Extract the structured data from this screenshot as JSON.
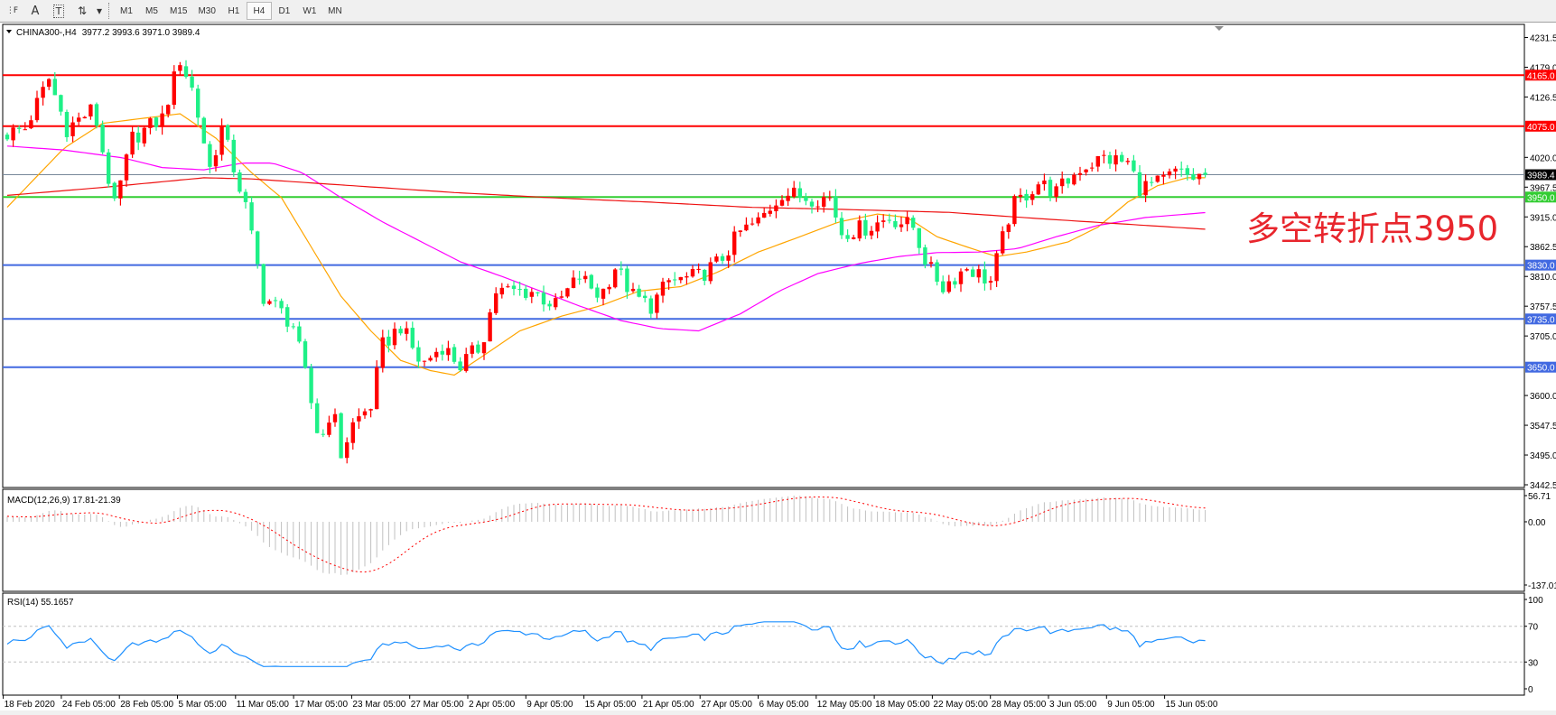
{
  "toolbar": {
    "tools": [
      {
        "name": "period-separators-icon",
        "glyph": "⋮F"
      },
      {
        "name": "text-tool-icon",
        "glyph": "A"
      },
      {
        "name": "text-label-icon",
        "glyph": "T"
      },
      {
        "name": "arrows-tool-icon",
        "glyph": "⇅"
      },
      {
        "name": "dropdown-icon",
        "glyph": "▾"
      }
    ],
    "timeframes": [
      "M1",
      "M5",
      "M15",
      "M30",
      "H1",
      "H4",
      "D1",
      "W1",
      "MN"
    ],
    "selected": "H4"
  },
  "chart": {
    "symbol": "CHINA300-,H4",
    "ohlc": "3977.2 3993.6 3971.0 3989.4",
    "price_ticks": [
      "4231.5",
      "4179.0",
      "4126.5",
      "4020.0",
      "3967.5",
      "3915.0",
      "3862.5",
      "3810.0",
      "3757.5",
      "3705.0",
      "3600.0",
      "3547.5",
      "3495.0",
      "3442.5"
    ],
    "levels": [
      {
        "price": 4165.0,
        "label": "4165.0",
        "color": "#ff0000"
      },
      {
        "price": 4075.0,
        "label": "4075.0",
        "color": "#ff0000"
      },
      {
        "price": 3950.0,
        "label": "3950.0",
        "color": "#32cd32"
      },
      {
        "price": 3830.0,
        "label": "3830.0",
        "color": "#4169e1"
      },
      {
        "price": 3735.0,
        "label": "3735.0",
        "color": "#4169e1"
      },
      {
        "price": 3650.0,
        "label": "3650.0",
        "color": "#4169e1"
      }
    ],
    "current_price": {
      "price": 3989.4,
      "label": "3989.4",
      "color": "#778899"
    },
    "annotation": "多空转折点3950",
    "annotation_color": "#e8262d",
    "date_labels": [
      "18 Feb 2020",
      "24 Feb 05:00",
      "28 Feb 05:00",
      "5 Mar 05:00",
      "11 Mar 05:00",
      "17 Mar 05:00",
      "23 Mar 05:00",
      "27 Mar 05:00",
      "2 Apr 05:00",
      "9 Apr 05:00",
      "15 Apr 05:00",
      "21 Apr 05:00",
      "27 Apr 05:00",
      "6 May 05:00",
      "12 May 05:00",
      "18 May 05:00",
      "22 May 05:00",
      "28 May 05:00",
      "3 Jun 05:00",
      "9 Jun 05:00",
      "15 Jun 05:00"
    ]
  },
  "chart_data": {
    "type": "candlestick",
    "price_range": [
      3442.5,
      4231.5
    ],
    "bar_count": 202,
    "up_color": "#ff0000",
    "down_color": "#1ef087",
    "price_path": [
      [
        0,
        4062
      ],
      [
        3,
        4071
      ],
      [
        7,
        4158
      ],
      [
        10,
        4071
      ],
      [
        14.5,
        4106
      ],
      [
        18,
        3932
      ],
      [
        21,
        4054
      ],
      [
        26,
        4089
      ],
      [
        29,
        4193
      ],
      [
        31,
        4141
      ],
      [
        34,
        4001
      ],
      [
        36,
        4071
      ],
      [
        39,
        3967
      ],
      [
        40,
        3932
      ],
      [
        43,
        3775
      ],
      [
        45,
        3758
      ],
      [
        48,
        3723
      ],
      [
        50,
        3636
      ],
      [
        52.5,
        3514
      ],
      [
        54.5,
        3583
      ],
      [
        56,
        3496
      ],
      [
        58,
        3549
      ],
      [
        61,
        3583
      ],
      [
        63,
        3688
      ],
      [
        66,
        3723
      ],
      [
        69.5,
        3653
      ],
      [
        73,
        3688
      ],
      [
        76,
        3653
      ],
      [
        79.5,
        3688
      ],
      [
        82,
        3784
      ],
      [
        88,
        3784
      ],
      [
        92,
        3758
      ],
      [
        96,
        3810
      ],
      [
        99.5,
        3775
      ],
      [
        102,
        3827
      ],
      [
        105,
        3775
      ],
      [
        108,
        3758
      ],
      [
        111,
        3801
      ],
      [
        116,
        3810
      ],
      [
        119.5,
        3836
      ],
      [
        123,
        3888
      ],
      [
        126,
        3906
      ],
      [
        130,
        3958
      ],
      [
        134.5,
        3949
      ],
      [
        138,
        3949
      ],
      [
        140,
        3888
      ],
      [
        144.5,
        3897
      ],
      [
        148,
        3914
      ],
      [
        152,
        3897
      ],
      [
        154.5,
        3827
      ],
      [
        157,
        3792
      ],
      [
        161,
        3827
      ],
      [
        165,
        3801
      ],
      [
        168.5,
        3932
      ],
      [
        173,
        3975
      ],
      [
        176,
        3958
      ],
      [
        180,
        4001
      ],
      [
        184,
        4019
      ],
      [
        188,
        4010
      ],
      [
        190,
        3967
      ],
      [
        193.5,
        3975
      ],
      [
        196,
        3993
      ],
      [
        199,
        3984
      ],
      [
        201,
        3989.4
      ]
    ],
    "ma_fast": {
      "color": "#ffa500",
      "points": [
        [
          0,
          3932
        ],
        [
          9.5,
          4036
        ],
        [
          16,
          4080
        ],
        [
          29,
          4097
        ],
        [
          35,
          4054
        ],
        [
          41,
          3993
        ],
        [
          46,
          3949
        ],
        [
          51,
          3862
        ],
        [
          56,
          3775
        ],
        [
          61,
          3714
        ],
        [
          66,
          3662
        ],
        [
          71,
          3644
        ],
        [
          75,
          3636
        ],
        [
          80,
          3671
        ],
        [
          86,
          3714
        ],
        [
          93,
          3740
        ],
        [
          99.5,
          3758
        ],
        [
          106,
          3784
        ],
        [
          113,
          3792
        ],
        [
          119.5,
          3819
        ],
        [
          126,
          3853
        ],
        [
          133,
          3880
        ],
        [
          139.5,
          3906
        ],
        [
          146,
          3920
        ],
        [
          151,
          3914
        ],
        [
          156,
          3880
        ],
        [
          161,
          3862
        ],
        [
          166,
          3845
        ],
        [
          171,
          3853
        ],
        [
          178,
          3871
        ],
        [
          183,
          3897
        ],
        [
          188,
          3941
        ],
        [
          193,
          3970
        ],
        [
          198,
          3984
        ],
        [
          201.5,
          3984
        ]
      ]
    },
    "ma_mid": {
      "color": "#ff00ff",
      "points": [
        [
          0,
          4040
        ],
        [
          9.5,
          4033
        ],
        [
          19.5,
          4019
        ],
        [
          26,
          4002
        ],
        [
          33,
          3998
        ],
        [
          39.5,
          4010
        ],
        [
          44.5,
          4010
        ],
        [
          49.5,
          3993
        ],
        [
          56,
          3949
        ],
        [
          63,
          3906
        ],
        [
          69.5,
          3871
        ],
        [
          76,
          3836
        ],
        [
          83,
          3810
        ],
        [
          89.5,
          3784
        ],
        [
          96,
          3758
        ],
        [
          103,
          3732
        ],
        [
          109.5,
          3718
        ],
        [
          116,
          3714
        ],
        [
          123,
          3744
        ],
        [
          129.5,
          3784
        ],
        [
          136,
          3815
        ],
        [
          143,
          3833
        ],
        [
          149.5,
          3845
        ],
        [
          156,
          3852
        ],
        [
          163,
          3853
        ],
        [
          169.5,
          3859
        ],
        [
          176,
          3880
        ],
        [
          183,
          3900
        ],
        [
          191,
          3914
        ],
        [
          201.5,
          3923
        ]
      ]
    },
    "ma_slow": {
      "color": "#ee1111",
      "points": [
        [
          0,
          3953
        ],
        [
          16,
          3967
        ],
        [
          33,
          3984
        ],
        [
          41,
          3982
        ],
        [
          58,
          3970
        ],
        [
          75,
          3958
        ],
        [
          91,
          3949
        ],
        [
          108,
          3941
        ],
        [
          124.5,
          3932
        ],
        [
          141,
          3928
        ],
        [
          158,
          3923
        ],
        [
          174.5,
          3911
        ],
        [
          191,
          3900
        ],
        [
          201.5,
          3893
        ]
      ]
    }
  },
  "macd": {
    "label": "MACD(12,26,9) 17.81-21.39",
    "ticks": [
      "56.71",
      "0.00",
      "-137.01"
    ],
    "range": [
      -137.01,
      56.71
    ],
    "histogram_color": "#c0c0c0",
    "signal_color": "#ff0000"
  },
  "rsi": {
    "label": "RSI(14) 55.1657",
    "ticks": [
      "100",
      "70",
      "30",
      "0"
    ],
    "levels": [
      70,
      30
    ],
    "line_color": "#1e90ff"
  }
}
